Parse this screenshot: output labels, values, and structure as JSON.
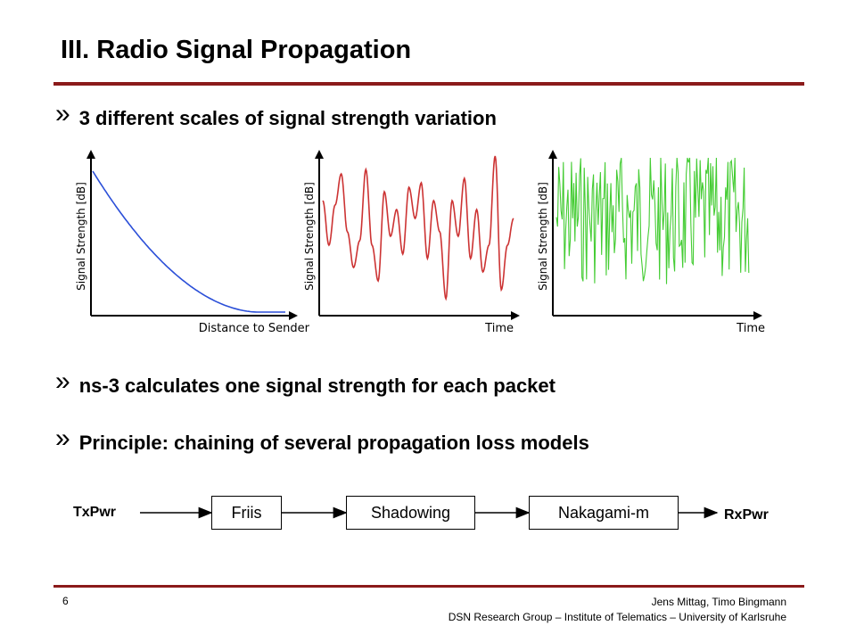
{
  "slide": {
    "title": "III. Radio Signal Propagation",
    "bullets": [
      "3 different scales of signal strength variation",
      "ns-3 calculates one signal strength for each packet",
      "Principle: chaining of several propagation loss models"
    ],
    "bullet_marker": "»"
  },
  "plots": [
    {
      "ylabel": "Signal Strength [dB]",
      "xlabel": "Distance to Sender",
      "color": "#2b4fd8"
    },
    {
      "ylabel": "Signal Strength [dB]",
      "xlabel": "Time",
      "color": "#cc3333"
    },
    {
      "ylabel": "Signal Strength [dB]",
      "xlabel": "Time",
      "color": "#44cc33"
    }
  ],
  "flow": {
    "input": "TxPwr",
    "output": "RxPwr",
    "models": [
      "Friis",
      "Shadowing",
      "Nakagami-m"
    ]
  },
  "footer": {
    "page": "6",
    "authors": "Jens Mittag, Timo Bingmann",
    "affiliation": "DSN Research Group – Institute of Telematics – University of Karlsruhe"
  }
}
